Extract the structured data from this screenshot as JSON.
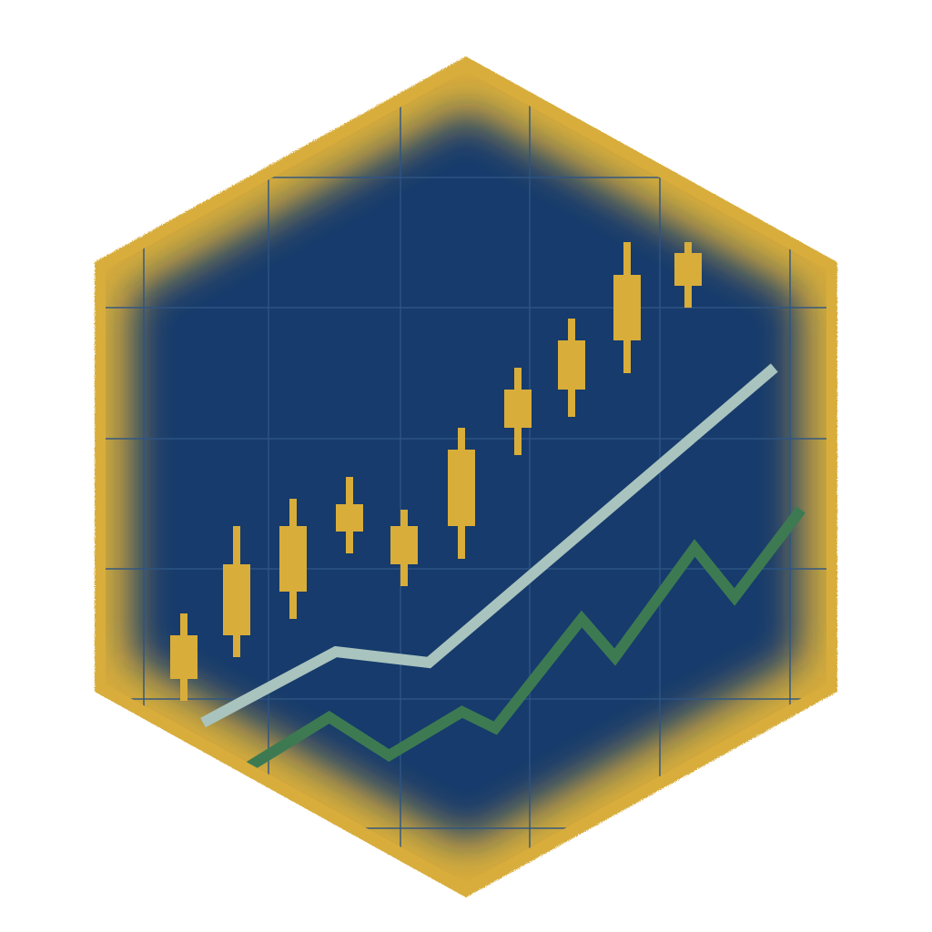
{
  "badge": {
    "shape": "hexagon",
    "icon": "candlestick-chart-icon",
    "colors": {
      "border": "#d8ad3a",
      "border_dark": "#b88e22",
      "field": "#163a6c",
      "field_dark": "#0f2f5d",
      "grid": "#2e5585",
      "candles": "#d8ad3a",
      "upper_line": "#a9c3be",
      "lower_line": "#3d7a52"
    }
  },
  "chart_data": {
    "type": "candlestick",
    "grid": true,
    "legend": "none",
    "candles": [
      {
        "low": 0.1,
        "open": 0.14,
        "close": 0.22,
        "high": 0.26
      },
      {
        "low": 0.18,
        "open": 0.22,
        "close": 0.35,
        "high": 0.42
      },
      {
        "low": 0.25,
        "open": 0.3,
        "close": 0.42,
        "high": 0.47
      },
      {
        "low": 0.37,
        "open": 0.41,
        "close": 0.46,
        "high": 0.51
      },
      {
        "low": 0.31,
        "open": 0.35,
        "close": 0.42,
        "high": 0.45
      },
      {
        "low": 0.36,
        "open": 0.42,
        "close": 0.56,
        "high": 0.6
      },
      {
        "low": 0.55,
        "open": 0.6,
        "close": 0.67,
        "high": 0.71
      },
      {
        "low": 0.62,
        "open": 0.67,
        "close": 0.76,
        "high": 0.8
      },
      {
        "low": 0.7,
        "open": 0.76,
        "close": 0.88,
        "high": 0.94
      },
      {
        "low": 0.82,
        "open": 0.86,
        "close": 0.92,
        "high": 0.94
      }
    ],
    "series": [
      {
        "values": [
          [
            0.1,
            0.06
          ],
          [
            0.3,
            0.19
          ],
          [
            0.44,
            0.17
          ],
          [
            0.96,
            0.71
          ]
        ]
      },
      {
        "values": [
          [
            0.17,
            -0.02
          ],
          [
            0.29,
            0.07
          ],
          [
            0.38,
            0.0
          ],
          [
            0.49,
            0.08
          ],
          [
            0.54,
            0.05
          ],
          [
            0.67,
            0.25
          ],
          [
            0.72,
            0.18
          ],
          [
            0.84,
            0.38
          ],
          [
            0.9,
            0.29
          ],
          [
            1.0,
            0.45
          ]
        ]
      }
    ]
  }
}
